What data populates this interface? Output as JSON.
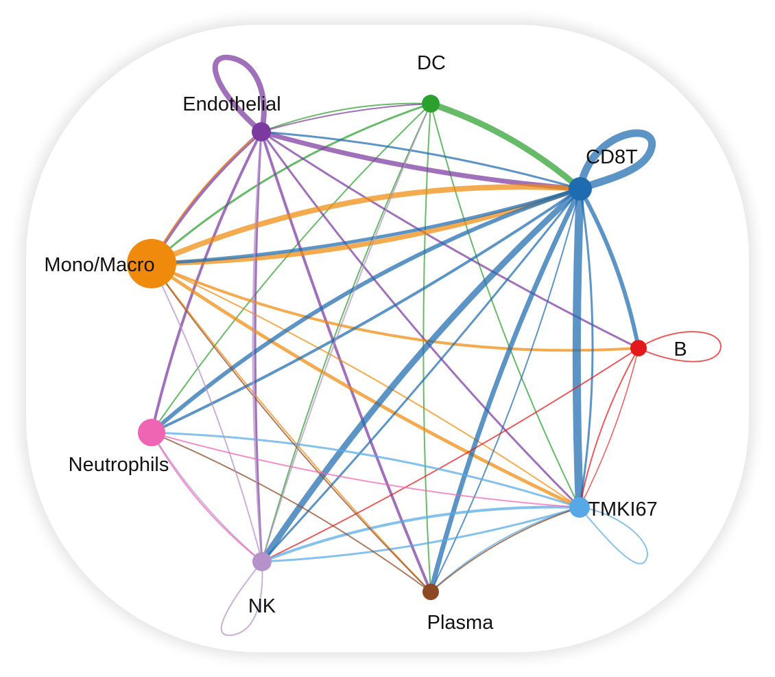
{
  "diagram": {
    "type": "cell-cell communication circle plot",
    "nodes": [
      {
        "id": "DC",
        "label": "DC",
        "color": "#2ca02c"
      },
      {
        "id": "CD8T",
        "label": "CD8T",
        "color": "#1f6bb0"
      },
      {
        "id": "B",
        "label": "B",
        "color": "#e31a1c"
      },
      {
        "id": "TMKI67",
        "label": "TMKI67",
        "color": "#56a9e6"
      },
      {
        "id": "Plasma",
        "label": "Plasma",
        "color": "#8c4a24"
      },
      {
        "id": "NK",
        "label": "NK",
        "color": "#b592c9"
      },
      {
        "id": "Neutrophils",
        "label": "Neutrophils",
        "color": "#f064b4"
      },
      {
        "id": "Mono/Macro",
        "label": "Mono/Macro",
        "color": "#f08a0c"
      },
      {
        "id": "Endothelial",
        "label": "Endothelial",
        "color": "#7b3aa0"
      }
    ]
  }
}
